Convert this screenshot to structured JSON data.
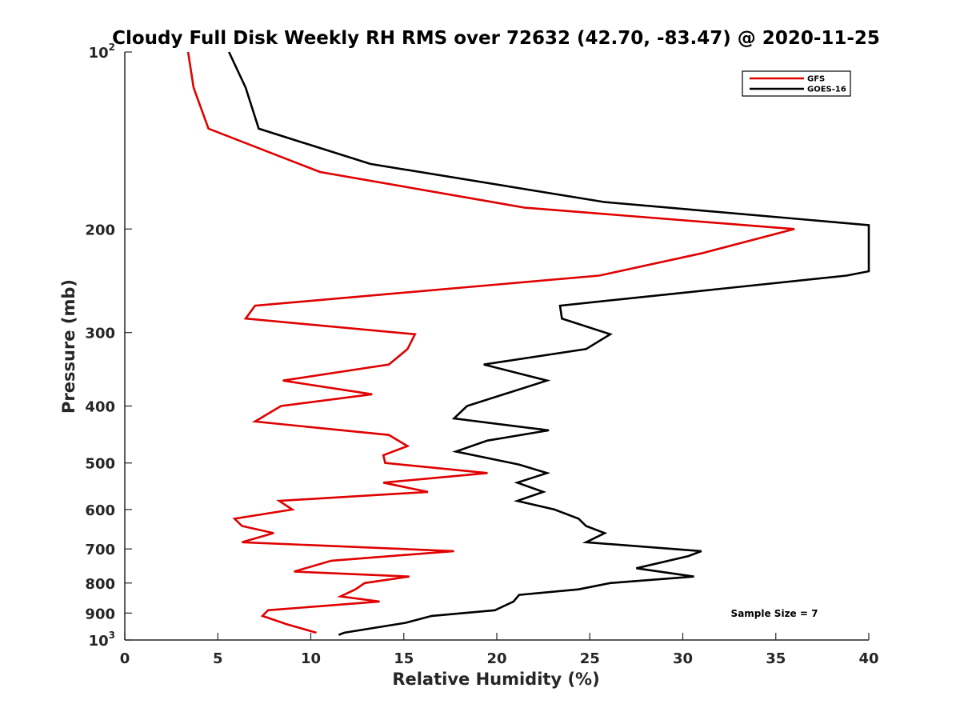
{
  "chart_data": {
    "type": "line",
    "title": "Cloudy Full Disk Weekly RH RMS over 72632 (42.70, -83.47) @ 2020-11-25",
    "xlabel": "Relative Humidity (%)",
    "ylabel": "Pressure (mb)",
    "xlim": [
      0,
      40
    ],
    "ylim": [
      100,
      1000
    ],
    "y_scale": "log",
    "y_reversed": true,
    "grid": false,
    "legend_position": "top-right",
    "x_ticks": [
      "0",
      "5",
      "10",
      "15",
      "20",
      "25",
      "30",
      "35",
      "40"
    ],
    "y_ticks": [
      {
        "value": 100,
        "base": "10",
        "exp": "2"
      },
      {
        "value": 200,
        "label": "200"
      },
      {
        "value": 300,
        "label": "300"
      },
      {
        "value": 400,
        "label": "400"
      },
      {
        "value": 500,
        "label": "500"
      },
      {
        "value": 600,
        "label": "600"
      },
      {
        "value": 700,
        "label": "700"
      },
      {
        "value": 800,
        "label": "800"
      },
      {
        "value": 900,
        "label": "900"
      },
      {
        "value": 1000,
        "base": "10",
        "exp": "3"
      }
    ],
    "annotation": "Sample Size = 7",
    "series": [
      {
        "name": "GFS",
        "color": "#e00000",
        "points": [
          [
            3.4,
            100
          ],
          [
            3.7,
            115
          ],
          [
            4.5,
            135
          ],
          [
            10.5,
            160
          ],
          [
            21.5,
            184
          ],
          [
            36,
            200
          ],
          [
            31,
            220
          ],
          [
            25.5,
            240
          ],
          [
            7,
            270
          ],
          [
            6.5,
            284
          ],
          [
            15.6,
            302
          ],
          [
            15.2,
            320
          ],
          [
            14.2,
            340
          ],
          [
            8.5,
            362
          ],
          [
            13.3,
            382
          ],
          [
            8.4,
            400
          ],
          [
            7,
            425
          ],
          [
            14.2,
            448
          ],
          [
            15.2,
            468
          ],
          [
            13.9,
            485
          ],
          [
            14,
            500
          ],
          [
            19.5,
            520
          ],
          [
            13.9,
            540
          ],
          [
            16.3,
            560
          ],
          [
            8.3,
            580
          ],
          [
            9,
            600
          ],
          [
            5.9,
            622
          ],
          [
            6.3,
            640
          ],
          [
            8,
            658
          ],
          [
            6.3,
            682
          ],
          [
            17.7,
            706
          ],
          [
            11.1,
            733
          ],
          [
            9.1,
            765
          ],
          [
            15.3,
            780
          ],
          [
            12.9,
            800
          ],
          [
            12.4,
            820
          ],
          [
            11.6,
            843
          ],
          [
            13.7,
            860
          ],
          [
            7.7,
            890
          ],
          [
            7.4,
            910
          ],
          [
            8.7,
            940
          ],
          [
            10.3,
            972
          ]
        ]
      },
      {
        "name": "GOES-16",
        "color": "#000000",
        "points": [
          [
            5.6,
            100
          ],
          [
            6.5,
            115
          ],
          [
            7.2,
            135
          ],
          [
            13.2,
            155
          ],
          [
            25.8,
            180
          ],
          [
            40,
            197
          ],
          [
            40,
            236
          ],
          [
            38.8,
            240
          ],
          [
            23.4,
            270
          ],
          [
            23.5,
            284
          ],
          [
            26.1,
            302
          ],
          [
            24.8,
            320
          ],
          [
            19.3,
            340
          ],
          [
            22.7,
            362
          ],
          [
            18.4,
            400
          ],
          [
            17.7,
            420
          ],
          [
            22.8,
            440
          ],
          [
            19.5,
            458
          ],
          [
            17.8,
            478
          ],
          [
            21.2,
            503
          ],
          [
            22.7,
            520
          ],
          [
            21.1,
            540
          ],
          [
            22.5,
            560
          ],
          [
            21.1,
            580
          ],
          [
            23.1,
            600
          ],
          [
            24.4,
            622
          ],
          [
            24.8,
            640
          ],
          [
            25.8,
            658
          ],
          [
            24.8,
            682
          ],
          [
            31,
            706
          ],
          [
            30.3,
            720
          ],
          [
            27.5,
            755
          ],
          [
            30.6,
            780
          ],
          [
            26.1,
            800
          ],
          [
            24.4,
            820
          ],
          [
            21.2,
            838
          ],
          [
            20.9,
            860
          ],
          [
            19.9,
            890
          ],
          [
            16.5,
            910
          ],
          [
            15.1,
            935
          ],
          [
            11.8,
            972
          ],
          [
            11.5,
            980
          ]
        ]
      }
    ]
  }
}
